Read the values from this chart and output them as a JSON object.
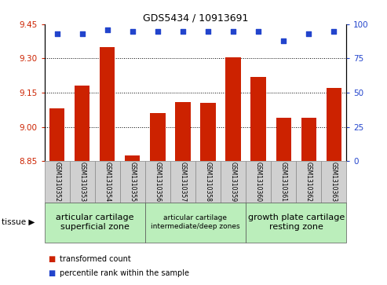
{
  "title": "GDS5434 / 10913691",
  "samples": [
    "GSM1310352",
    "GSM1310353",
    "GSM1310354",
    "GSM1310355",
    "GSM1310356",
    "GSM1310357",
    "GSM1310358",
    "GSM1310359",
    "GSM1310360",
    "GSM1310361",
    "GSM1310362",
    "GSM1310363"
  ],
  "bar_values": [
    9.08,
    9.18,
    9.35,
    8.875,
    9.06,
    9.11,
    9.105,
    9.305,
    9.22,
    9.04,
    9.04,
    9.17
  ],
  "percentile_values": [
    93,
    93,
    96,
    95,
    95,
    95,
    95,
    95,
    95,
    88,
    93,
    95
  ],
  "ylim_left": [
    8.85,
    9.45
  ],
  "ylim_right": [
    0,
    100
  ],
  "yticks_left": [
    8.85,
    9.0,
    9.15,
    9.3,
    9.45
  ],
  "yticks_right": [
    0,
    25,
    50,
    75,
    100
  ],
  "bar_color": "#cc2200",
  "dot_color": "#2244cc",
  "bar_bottom": 8.85,
  "tissue_groups": [
    {
      "label": "articular cartilage\nsuperficial zone",
      "start": 0,
      "end": 4,
      "color": "#bbeebb",
      "fontsize": 8
    },
    {
      "label": "articular cartilage\nintermediate/deep zones",
      "start": 4,
      "end": 8,
      "color": "#bbeebb",
      "fontsize": 6.5
    },
    {
      "label": "growth plate cartilage\nresting zone",
      "start": 8,
      "end": 12,
      "color": "#bbeebb",
      "fontsize": 8
    }
  ],
  "legend_bar_label": "transformed count",
  "legend_dot_label": "percentile rank within the sample",
  "tissue_label": "tissue",
  "grid_color": "#000000",
  "left_tick_color": "#cc2200",
  "right_tick_color": "#2244cc",
  "bg_plot": "#ffffff",
  "xtick_bg": "#d0d0d0",
  "dotted_lines": [
    9.0,
    9.15,
    9.3
  ]
}
